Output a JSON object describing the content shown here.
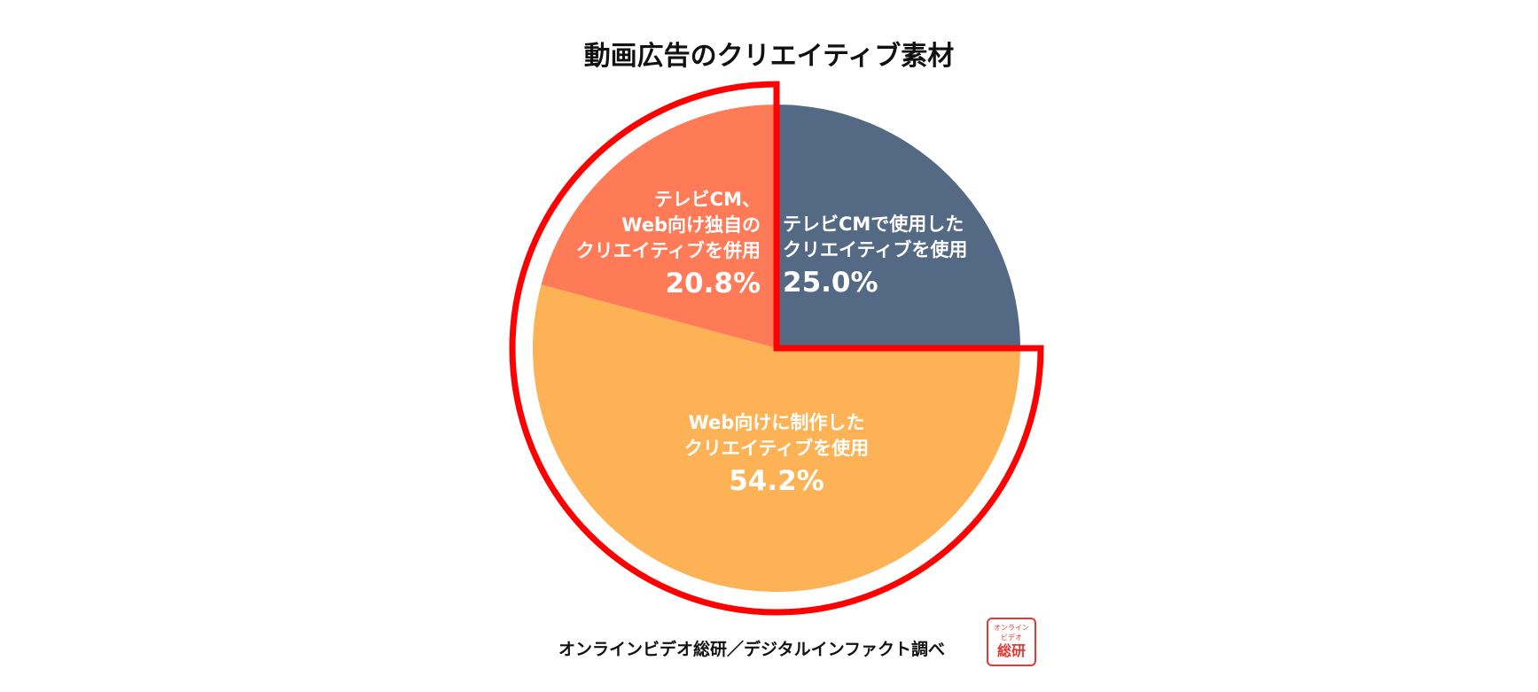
{
  "title": "動画広告のクリエイティブ素材",
  "source": "オンラインビデオ総研／デジタルインファクト調べ",
  "stamp": {
    "line1": "オンライン",
    "line2": "ビデオ",
    "line3": "総研"
  },
  "colors": {
    "tvcm": "#546a84",
    "web": "#fdb355",
    "both": "#ff7a57",
    "highlight": "#ff0000",
    "label": "#ffffff"
  },
  "chart_data": {
    "type": "pie",
    "title": "動画広告のクリエイティブ素材",
    "unit": "%",
    "start": "12 o'clock, clockwise",
    "slices": [
      {
        "label_lines": [
          "テレビCMで使用した",
          "クリエイティブを使用"
        ],
        "value": 25.0,
        "value_label": "25.0%",
        "color": "#546a84"
      },
      {
        "label_lines": [
          "Web向けに制作した",
          "クリエイティブを使用"
        ],
        "value": 54.2,
        "value_label": "54.2%",
        "color": "#fdb355"
      },
      {
        "label_lines": [
          "テレビCM、",
          "Web向け独自の",
          "クリエイティブを併用"
        ],
        "value": 20.8,
        "value_label": "20.8%",
        "color": "#ff7a57"
      }
    ],
    "highlighted": [
      "Web向けに制作した",
      "テレビCM、Web向け独自の"
    ]
  }
}
